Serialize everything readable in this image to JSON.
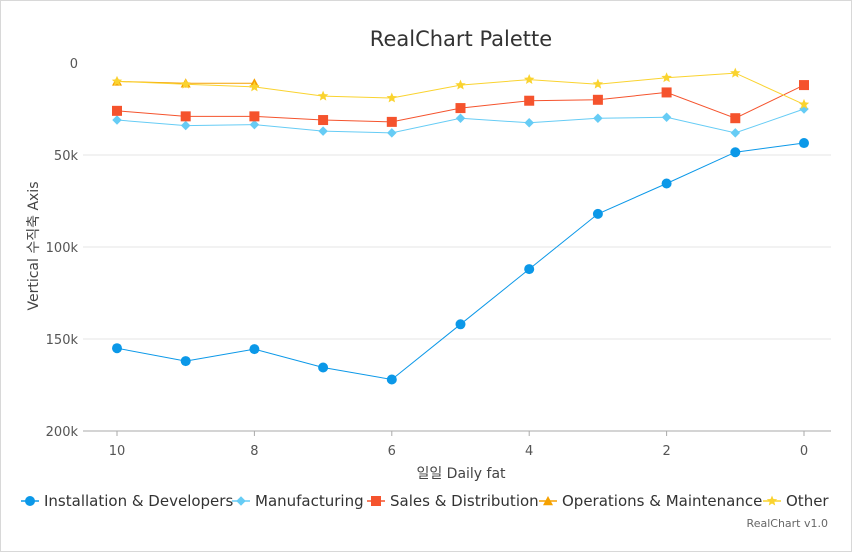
{
  "chart_data": {
    "type": "line",
    "title": "RealChart Palette",
    "xlabel": "일일 Daily fat",
    "ylabel": "Vertical 수직축 Axis",
    "x": [
      10,
      9,
      8,
      7,
      6,
      5,
      4,
      3,
      2,
      1,
      0
    ],
    "x_ticks": [
      "10",
      "8",
      "6",
      "4",
      "2",
      "0"
    ],
    "x_reversed": true,
    "y_reversed": true,
    "ylim": [
      0,
      200000
    ],
    "y_ticks": [
      "0",
      "50k",
      "100k",
      "150k",
      "200k"
    ],
    "grid": true,
    "legend": "bottom",
    "credit": "RealChart v1.0",
    "series": [
      {
        "name": "Installation & Developers",
        "color": "#0b98e8",
        "marker": "circle",
        "values": [
          155000,
          162000,
          155500,
          165500,
          172000,
          142000,
          112000,
          82000,
          65500,
          48500,
          43500
        ]
      },
      {
        "name": "Manufacturing",
        "color": "#66ccf5",
        "marker": "diamond",
        "values": [
          31000,
          34000,
          33500,
          37000,
          38000,
          30000,
          32500,
          30000,
          29500,
          38000,
          25000
        ]
      },
      {
        "name": "Sales & Distribution",
        "color": "#f5532d",
        "marker": "square",
        "values": [
          26000,
          29000,
          29000,
          31000,
          32000,
          24500,
          20500,
          20000,
          16000,
          30000,
          12000
        ]
      },
      {
        "name": "Operations & Maintenance",
        "color": "#f5a100",
        "marker": "triangle",
        "values": [
          10000,
          11000,
          11000,
          null,
          null,
          null,
          null,
          null,
          null,
          null,
          null
        ]
      },
      {
        "name": "Other",
        "color": "#fad32f",
        "marker": "star",
        "values": [
          10000,
          11500,
          13000,
          18000,
          19000,
          12000,
          9000,
          11500,
          8000,
          5500,
          22500
        ]
      }
    ]
  }
}
